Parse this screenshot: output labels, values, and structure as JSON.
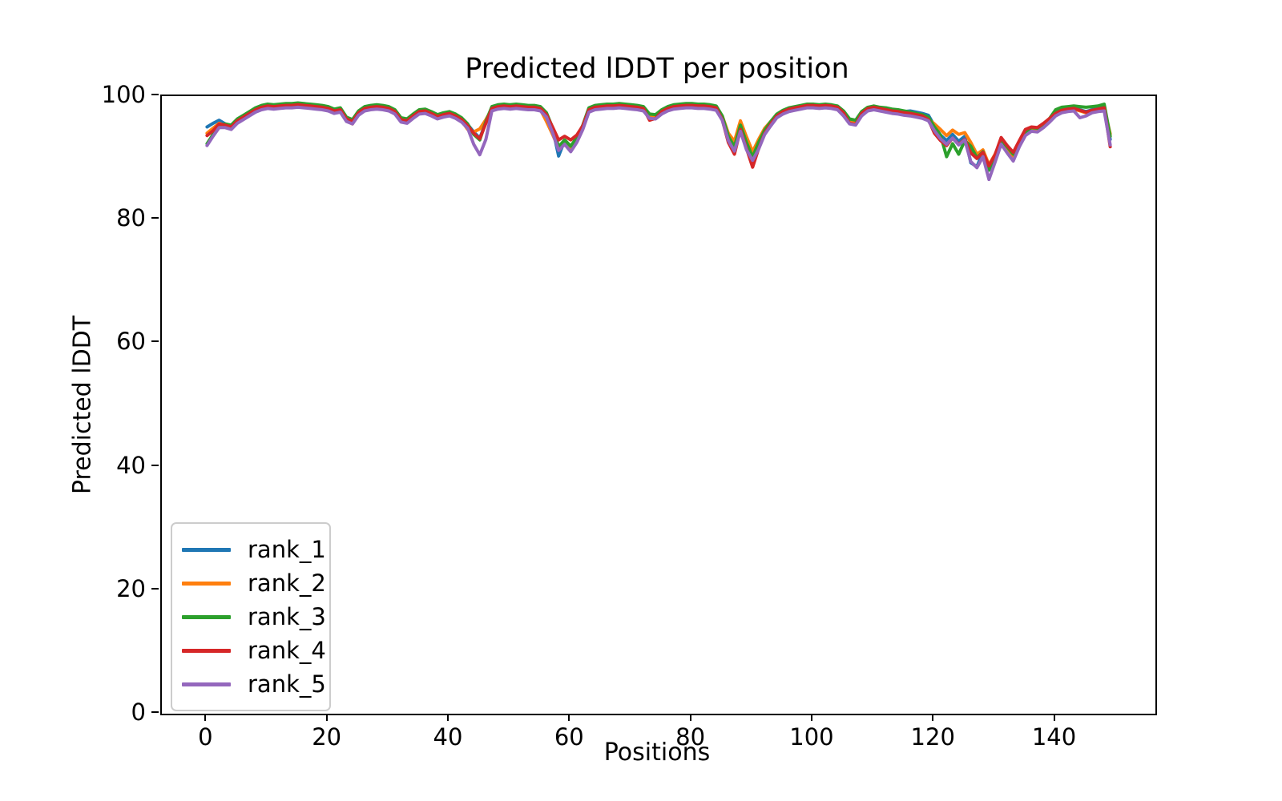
{
  "figure": {
    "title": "Predicted lDDT per position"
  },
  "chart_data": {
    "type": "line",
    "title": "Predicted lDDT per position",
    "xlabel": "Positions",
    "ylabel": "Predicted lDDT",
    "x_description": "residue position index, 0 to 149 step 1",
    "xlim": [
      -7.45,
      156.45
    ],
    "ylim": [
      0,
      100
    ],
    "xticks": [
      0,
      20,
      40,
      60,
      80,
      100,
      120,
      140
    ],
    "yticks": [
      0,
      20,
      40,
      60,
      80,
      100
    ],
    "grid": false,
    "legend_position": "lower left",
    "line_width": 4,
    "series": [
      {
        "name": "rank_1",
        "color": "#1f77b4",
        "values": [
          95.0,
          95.6,
          96.1,
          95.5,
          95.2,
          96.2,
          96.8,
          97.4,
          98.0,
          98.4,
          98.5,
          98.4,
          98.6,
          98.6,
          98.7,
          98.7,
          98.6,
          98.5,
          98.4,
          98.3,
          98.1,
          97.8,
          97.9,
          96.5,
          96.1,
          97.5,
          98.1,
          98.3,
          98.4,
          98.3,
          98.1,
          97.7,
          96.4,
          96.2,
          97.0,
          97.6,
          97.7,
          97.4,
          96.9,
          97.1,
          97.3,
          97.0,
          96.4,
          95.4,
          94.2,
          93.2,
          95.8,
          98.1,
          98.4,
          98.5,
          98.4,
          98.5,
          98.4,
          98.3,
          98.3,
          98.1,
          97.2,
          94.8,
          90.3,
          92.8,
          91.8,
          93.2,
          95.2,
          97.9,
          98.3,
          98.4,
          98.5,
          98.5,
          98.6,
          98.5,
          98.4,
          98.3,
          98.1,
          97.0,
          96.9,
          97.6,
          98.1,
          98.4,
          98.5,
          98.6,
          98.6,
          98.5,
          98.5,
          98.4,
          98.2,
          96.7,
          93.4,
          91.3,
          95.2,
          92.4,
          89.9,
          92.4,
          94.4,
          95.8,
          97.0,
          97.6,
          98.0,
          98.2,
          98.4,
          98.6,
          98.6,
          98.5,
          98.6,
          98.5,
          98.3,
          97.5,
          96.2,
          96.0,
          97.4,
          98.1,
          98.3,
          98.1,
          98.0,
          97.8,
          97.7,
          97.5,
          97.6,
          97.4,
          97.2,
          96.9,
          95.2,
          93.7,
          92.8,
          93.8,
          92.7,
          93.5,
          89.2,
          88.6,
          90.9,
          88.6,
          90.3,
          92.7,
          91.7,
          90.5,
          92.3,
          94.1,
          94.8,
          94.7,
          95.4,
          96.3,
          97.3,
          97.8,
          98.0,
          98.1,
          97.8,
          97.5,
          97.8,
          98.0,
          98.2,
          93.0
        ]
      },
      {
        "name": "rank_2",
        "color": "#ff7f0e",
        "values": [
          94.0,
          94.8,
          95.6,
          95.2,
          94.9,
          95.9,
          96.5,
          97.1,
          97.7,
          98.1,
          98.3,
          98.2,
          98.3,
          98.4,
          98.4,
          98.5,
          98.4,
          98.3,
          98.2,
          98.1,
          97.9,
          97.5,
          97.7,
          96.0,
          95.5,
          97.1,
          97.9,
          98.1,
          98.2,
          98.1,
          97.9,
          97.4,
          96.1,
          95.8,
          96.7,
          97.4,
          97.5,
          97.1,
          96.6,
          96.9,
          97.1,
          96.7,
          96.0,
          94.6,
          94.2,
          94.7,
          96.2,
          97.9,
          98.2,
          98.3,
          98.2,
          98.3,
          98.2,
          98.1,
          98.1,
          97.8,
          95.9,
          93.8,
          91.6,
          92.4,
          91.4,
          92.8,
          94.9,
          97.7,
          98.1,
          98.2,
          98.3,
          98.3,
          98.4,
          98.3,
          98.2,
          98.1,
          97.9,
          96.7,
          96.6,
          97.4,
          97.9,
          98.2,
          98.3,
          98.4,
          98.4,
          98.3,
          98.3,
          98.2,
          98.0,
          96.8,
          94.0,
          92.7,
          96.0,
          93.4,
          91.0,
          93.0,
          94.8,
          95.9,
          97.0,
          97.4,
          97.8,
          98.0,
          98.2,
          98.4,
          98.4,
          98.3,
          98.4,
          98.3,
          98.1,
          97.0,
          95.9,
          95.6,
          97.1,
          97.9,
          98.1,
          97.9,
          97.7,
          97.5,
          97.4,
          97.2,
          97.1,
          96.9,
          96.7,
          96.3,
          95.5,
          94.6,
          93.6,
          94.5,
          93.8,
          94.1,
          92.5,
          90.6,
          91.3,
          88.9,
          90.6,
          92.9,
          91.5,
          90.3,
          92.1,
          93.9,
          94.6,
          94.5,
          95.2,
          96.1,
          97.1,
          97.6,
          97.8,
          97.9,
          97.6,
          97.3,
          97.6,
          97.8,
          98.0,
          93.9
        ]
      },
      {
        "name": "rank_3",
        "color": "#2ca02c",
        "values": [
          92.3,
          93.8,
          95.3,
          95.5,
          95.3,
          96.3,
          96.9,
          97.5,
          98.1,
          98.5,
          98.7,
          98.6,
          98.7,
          98.8,
          98.8,
          98.9,
          98.8,
          98.7,
          98.6,
          98.5,
          98.3,
          97.9,
          98.1,
          96.6,
          96.2,
          97.6,
          98.3,
          98.5,
          98.6,
          98.5,
          98.3,
          97.8,
          96.5,
          96.3,
          97.1,
          97.8,
          97.9,
          97.5,
          97.0,
          97.3,
          97.5,
          97.1,
          96.5,
          95.5,
          93.8,
          92.9,
          95.9,
          98.3,
          98.6,
          98.7,
          98.6,
          98.7,
          98.6,
          98.5,
          98.5,
          98.3,
          97.3,
          94.9,
          91.8,
          92.9,
          91.9,
          93.3,
          95.3,
          98.1,
          98.5,
          98.6,
          98.7,
          98.7,
          98.8,
          98.7,
          98.6,
          98.5,
          98.3,
          97.1,
          97.0,
          97.8,
          98.3,
          98.6,
          98.7,
          98.8,
          98.8,
          98.7,
          98.7,
          98.6,
          98.4,
          96.8,
          93.5,
          91.8,
          95.3,
          92.5,
          90.1,
          92.5,
          94.5,
          95.9,
          97.1,
          97.7,
          98.1,
          98.3,
          98.5,
          98.7,
          98.7,
          98.6,
          98.7,
          98.6,
          98.4,
          97.6,
          96.3,
          96.1,
          97.5,
          98.2,
          98.4,
          98.2,
          98.1,
          97.9,
          97.8,
          97.6,
          97.4,
          97.2,
          97.0,
          96.6,
          95.0,
          93.7,
          90.2,
          92.3,
          90.6,
          92.8,
          91.9,
          90.0,
          91.0,
          88.0,
          90.4,
          92.8,
          91.8,
          90.6,
          92.4,
          94.2,
          94.9,
          94.8,
          95.5,
          96.4,
          97.8,
          98.2,
          98.3,
          98.4,
          98.3,
          98.2,
          98.3,
          98.4,
          98.7,
          93.5
        ]
      },
      {
        "name": "rank_4",
        "color": "#d62728",
        "values": [
          93.6,
          94.4,
          95.5,
          95.3,
          95.0,
          96.0,
          96.6,
          97.2,
          97.8,
          98.2,
          98.4,
          98.3,
          98.4,
          98.5,
          98.5,
          98.6,
          98.5,
          98.4,
          98.3,
          98.2,
          98.0,
          97.6,
          97.8,
          96.3,
          95.9,
          97.3,
          98.0,
          98.2,
          98.3,
          98.2,
          98.0,
          97.5,
          96.2,
          96.0,
          96.8,
          97.5,
          97.6,
          97.2,
          96.7,
          97.0,
          97.2,
          96.8,
          96.2,
          95.2,
          94.0,
          93.1,
          95.6,
          98.0,
          98.3,
          98.4,
          98.3,
          98.4,
          98.3,
          98.2,
          98.2,
          98.0,
          97.0,
          95.0,
          92.9,
          93.5,
          92.9,
          93.7,
          95.2,
          97.8,
          98.2,
          98.3,
          98.4,
          98.4,
          98.5,
          98.4,
          98.3,
          98.2,
          98.0,
          96.1,
          96.4,
          97.5,
          98.0,
          98.3,
          98.4,
          98.5,
          98.5,
          98.4,
          98.4,
          98.3,
          98.1,
          96.2,
          92.5,
          90.6,
          94.6,
          91.5,
          88.5,
          91.5,
          94.0,
          95.5,
          96.8,
          97.5,
          97.9,
          98.1,
          98.3,
          98.5,
          98.5,
          98.4,
          98.5,
          98.4,
          98.2,
          97.3,
          95.6,
          95.4,
          97.2,
          98.0,
          98.2,
          98.0,
          97.8,
          97.6,
          97.5,
          97.3,
          97.2,
          97.0,
          96.8,
          96.2,
          94.0,
          92.8,
          92.0,
          93.2,
          92.2,
          93.0,
          90.8,
          89.9,
          90.9,
          88.7,
          90.5,
          93.3,
          92.0,
          90.9,
          92.8,
          94.6,
          95.0,
          94.9,
          95.6,
          96.4,
          97.2,
          97.7,
          97.9,
          98.0,
          97.7,
          97.4,
          97.7,
          97.9,
          98.1,
          91.8
        ]
      },
      {
        "name": "rank_5",
        "color": "#9467bd",
        "values": [
          92.0,
          93.5,
          94.9,
          94.9,
          94.6,
          95.6,
          96.2,
          96.8,
          97.4,
          97.8,
          98.0,
          97.9,
          98.0,
          98.1,
          98.1,
          98.2,
          98.1,
          98.0,
          97.9,
          97.8,
          97.6,
          97.2,
          97.4,
          95.9,
          95.5,
          96.9,
          97.6,
          97.8,
          97.9,
          97.8,
          97.6,
          97.1,
          95.8,
          95.6,
          96.4,
          97.1,
          97.2,
          96.8,
          96.3,
          96.6,
          96.8,
          96.4,
          95.8,
          94.8,
          92.2,
          90.5,
          93.0,
          97.6,
          97.9,
          98.0,
          97.9,
          98.0,
          97.9,
          97.8,
          97.8,
          97.6,
          96.6,
          94.1,
          91.2,
          92.2,
          91.0,
          92.5,
          94.6,
          97.4,
          97.8,
          97.9,
          98.0,
          98.0,
          98.1,
          98.0,
          97.9,
          97.8,
          97.6,
          96.4,
          96.3,
          97.1,
          97.6,
          97.9,
          98.0,
          98.1,
          98.1,
          98.0,
          98.0,
          97.9,
          97.7,
          96.1,
          92.8,
          91.1,
          94.3,
          91.3,
          89.6,
          91.4,
          93.8,
          95.2,
          96.5,
          97.1,
          97.5,
          97.7,
          97.9,
          98.1,
          98.1,
          98.0,
          98.1,
          98.0,
          97.8,
          96.8,
          95.5,
          95.3,
          96.8,
          97.6,
          97.8,
          97.6,
          97.4,
          97.2,
          97.1,
          96.9,
          96.8,
          96.6,
          96.4,
          96.0,
          94.4,
          93.1,
          92.2,
          93.2,
          92.1,
          92.9,
          89.4,
          88.4,
          90.2,
          86.5,
          89.3,
          92.2,
          90.8,
          89.5,
          91.8,
          93.6,
          94.3,
          94.2,
          94.9,
          95.8,
          96.8,
          97.3,
          97.5,
          97.6,
          96.5,
          96.8,
          97.3,
          97.5,
          97.6,
          92.1
        ]
      }
    ]
  }
}
